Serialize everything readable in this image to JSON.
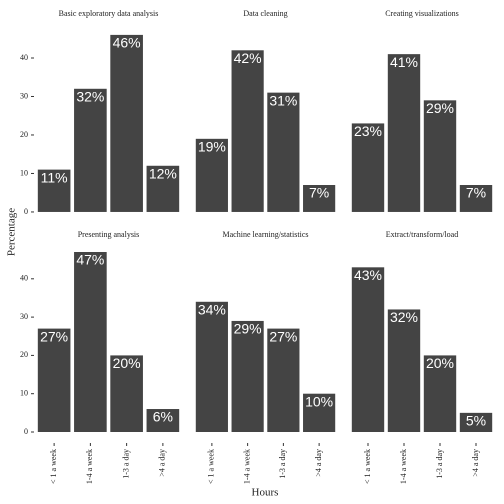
{
  "figure": {
    "xlabel": "Hours",
    "ylabel": "Percentage"
  },
  "chart_data": [
    {
      "type": "bar",
      "title": "Basic exploratory data analysis",
      "categories": [
        null,
        null,
        null,
        null
      ],
      "values": [
        11,
        32,
        46,
        12
      ],
      "value_labels": [
        "11%",
        "32%",
        "46%",
        "12%"
      ],
      "color": "#444444",
      "ylim": [
        -2.35,
        49.35
      ],
      "yticks": [
        0,
        10,
        20,
        30,
        40
      ]
    },
    {
      "type": "bar",
      "title": "Data cleaning",
      "categories": [
        null,
        null,
        null,
        null
      ],
      "values": [
        19,
        42,
        31,
        7
      ],
      "value_labels": [
        "19%",
        "42%",
        "31%",
        "7%"
      ],
      "color": "#444444",
      "ylim": [
        -2.35,
        49.35
      ]
    },
    {
      "type": "bar",
      "title": "Creating visualizations",
      "categories": [
        null,
        null,
        null,
        null
      ],
      "values": [
        23,
        41,
        29,
        7
      ],
      "value_labels": [
        "23%",
        "41%",
        "29%",
        "7%"
      ],
      "color": "#444444",
      "ylim": [
        -2.35,
        49.35
      ]
    },
    {
      "type": "bar",
      "title": "Presenting analysis",
      "categories": [
        "< 1 a week",
        "1-4 a week",
        "1-3 a day",
        ">4 a day"
      ],
      "values": [
        27,
        47,
        20,
        6
      ],
      "value_labels": [
        "27%",
        "47%",
        "20%",
        "6%"
      ],
      "color": "#444444",
      "ylim": [
        -2.35,
        49.35
      ],
      "yticks": [
        0,
        10,
        20,
        30,
        40
      ]
    },
    {
      "type": "bar",
      "title": "Machine learning/statistics",
      "categories": [
        "< 1 a week",
        "1-4 a week",
        "1-3 a day",
        ">4 a day"
      ],
      "values": [
        34,
        29,
        27,
        10
      ],
      "value_labels": [
        "34%",
        "29%",
        "27%",
        "10%"
      ],
      "color": "#444444",
      "ylim": [
        -2.35,
        49.35
      ]
    },
    {
      "type": "bar",
      "title": "Extract/transform/load",
      "categories": [
        "< 1 a week",
        "1-4 a week",
        "1-3 a day",
        ">4 a day"
      ],
      "values": [
        43,
        32,
        20,
        5
      ],
      "value_labels": [
        "43%",
        "32%",
        "20%",
        "5%"
      ],
      "color": "#444444",
      "ylim": [
        -2.35,
        49.35
      ]
    }
  ]
}
